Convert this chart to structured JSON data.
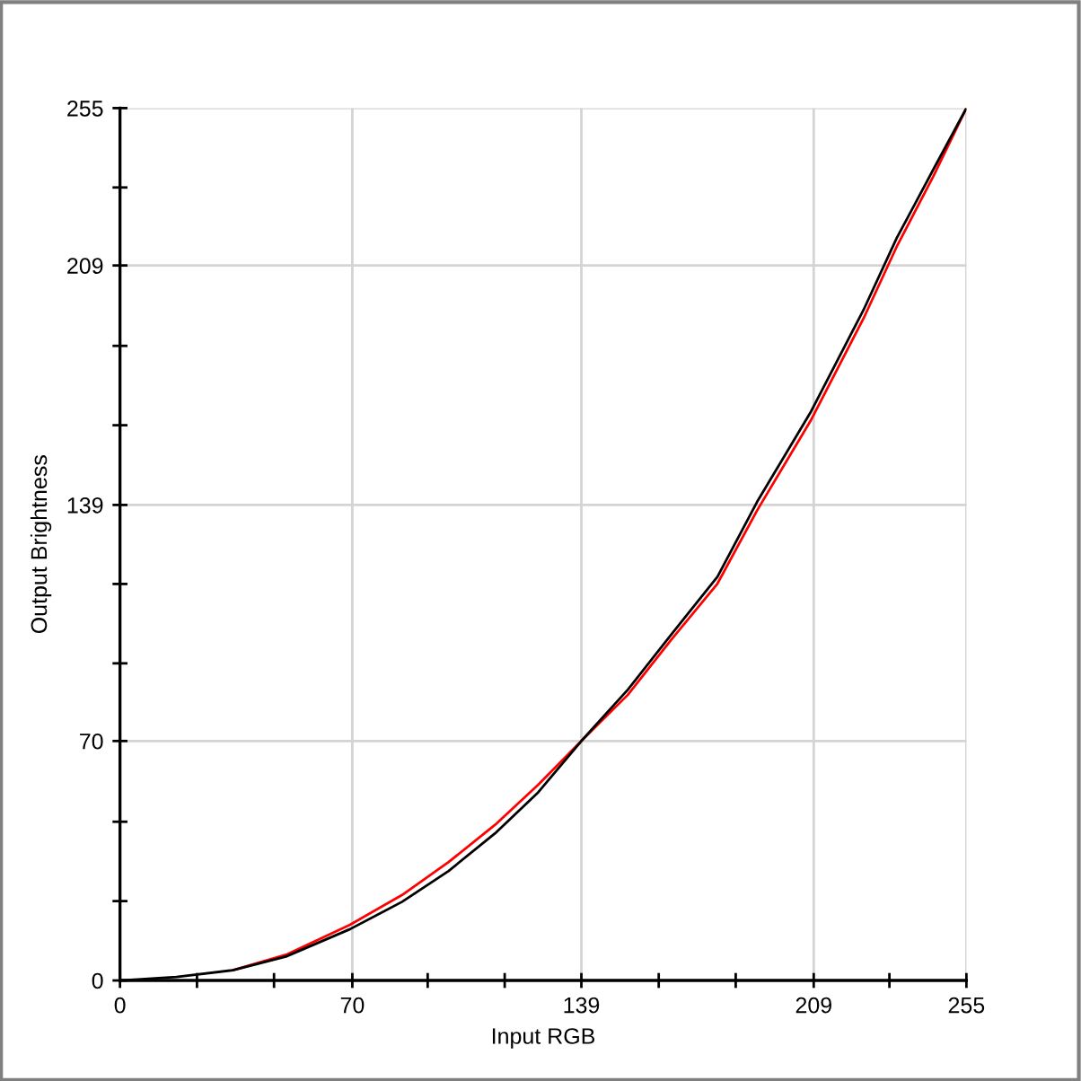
{
  "chart_data": {
    "type": "line",
    "xlabel": "Input RGB",
    "ylabel": "Output Brightness",
    "x": [
      0,
      17,
      34,
      50,
      69.3,
      85,
      99,
      113,
      126,
      139,
      153,
      166,
      180,
      192,
      208,
      224,
      234,
      245,
      255
    ],
    "series": [
      {
        "color": "#ff0000",
        "values": [
          null,
          null,
          3,
          7.5,
          16.3,
          25,
          34.6,
          45.5,
          57.2,
          70,
          83.5,
          99.5,
          116,
          137.5,
          163.5,
          193.5,
          214.5,
          235,
          255
        ]
      },
      {
        "color": "#000000",
        "values": [
          0,
          1,
          3,
          7,
          15,
          23,
          32,
          43,
          55,
          70,
          85,
          101,
          118,
          140,
          166,
          196,
          217,
          237,
          255
        ]
      }
    ],
    "xlim": [
      0,
      255
    ],
    "ylim": [
      0,
      255
    ],
    "xticks": [
      0,
      {
        "value": 23.2,
        "label": null
      },
      {
        "value": 46.4,
        "label": null
      },
      70,
      {
        "value": 92.7,
        "label": null
      },
      {
        "value": 115.9,
        "label": null
      },
      139,
      {
        "value": 162.3,
        "label": null
      },
      {
        "value": 185.5,
        "label": null
      },
      209,
      {
        "value": 231.8,
        "label": null
      },
      255
    ],
    "yticks": [
      0,
      {
        "value": 23.2,
        "label": null
      },
      {
        "value": 46.4,
        "label": null
      },
      70,
      {
        "value": 92.7,
        "label": null
      },
      {
        "value": 115.9,
        "label": null
      },
      139,
      {
        "value": 162.3,
        "label": null
      },
      {
        "value": 185.5,
        "label": null
      },
      209,
      {
        "value": 231.8,
        "label": null
      },
      255
    ],
    "grid": true
  }
}
